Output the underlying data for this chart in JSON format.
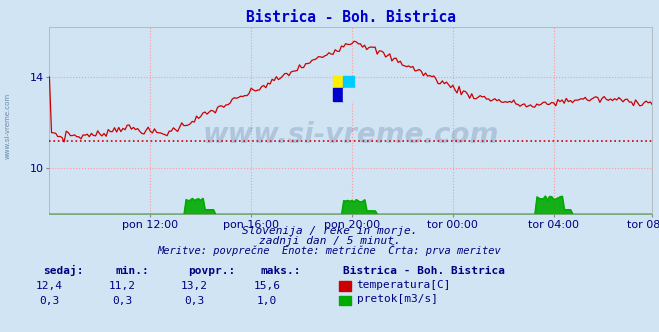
{
  "title": "Bistrica - Boh. Bistrica",
  "title_color": "#0000cc",
  "bg_color": "#d0e4f4",
  "plot_bg_color": "#d0e4f4",
  "grid_color": "#ff9999",
  "ylim": [
    8.0,
    16.2
  ],
  "yticks": [
    10,
    14
  ],
  "xlabel_color": "#000080",
  "temp_color": "#cc0000",
  "flow_color": "#00aa00",
  "avg_line_color": "#cc0000",
  "avg_temp": 11.2,
  "watermark_text": "www.si-vreme.com",
  "watermark_color": "#1a3a6a",
  "watermark_alpha": 0.18,
  "subtitle1": "Slovenija / reke in morje.",
  "subtitle2": "zadnji dan / 5 minut.",
  "subtitle3": "Meritve: povprečne  Enote: metrične  Črta: prva meritev",
  "subtitle_color": "#000080",
  "table_headers": [
    "sedaj:",
    "min.:",
    "povpr.:",
    "maks.:"
  ],
  "table_color": "#000080",
  "station_label": "Bistrica - Boh. Bistrica",
  "temp_stats": [
    "12,4",
    "11,2",
    "13,2",
    "15,6"
  ],
  "flow_stats": [
    "0,3",
    "0,3",
    "0,3",
    "1,0"
  ],
  "legend_temp": "temperatura[C]",
  "legend_flow": "pretok[m3/s]",
  "n_points": 288,
  "xticklabels": [
    "pon 12:00",
    "pon 16:00",
    "pon 20:00",
    "tor 00:00",
    "tor 04:00",
    "tor 08:00"
  ],
  "xtick_positions": [
    48,
    96,
    144,
    192,
    240,
    287
  ],
  "flow_scale_max": 1.0,
  "flow_display_max": 1.0
}
